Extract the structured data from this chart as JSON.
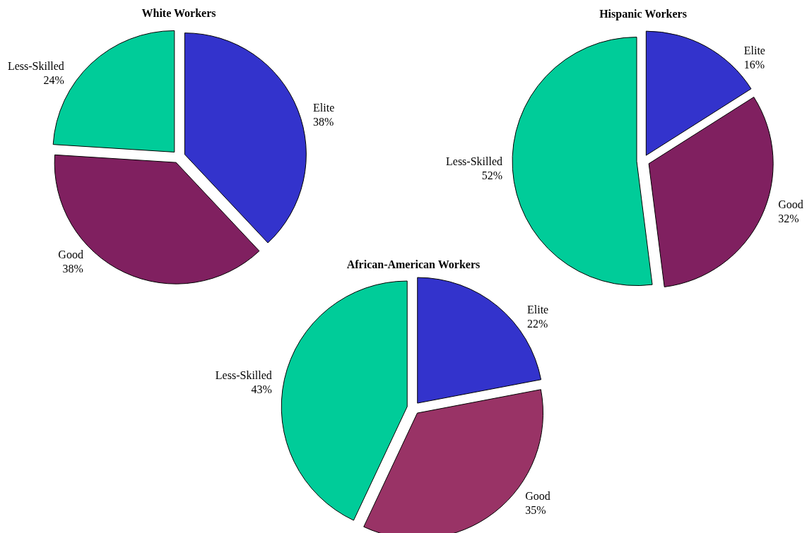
{
  "chart_data": [
    {
      "type": "pie",
      "title": "White Workers",
      "categories": [
        "Elite",
        "Good",
        "Less-Skilled"
      ],
      "values": [
        38,
        38,
        24
      ],
      "colors": [
        "#3333cc",
        "#802060",
        "#00cc99"
      ],
      "value_labels": [
        "38%",
        "38%",
        "24%"
      ]
    },
    {
      "type": "pie",
      "title": "Hispanic Workers",
      "categories": [
        "Elite",
        "Good",
        "Less-Skilled"
      ],
      "values": [
        16,
        32,
        52
      ],
      "colors": [
        "#3333cc",
        "#802060",
        "#00cc99"
      ],
      "value_labels": [
        "16%",
        "32%",
        "52%"
      ]
    },
    {
      "type": "pie",
      "title": "African-American Workers",
      "categories": [
        "Elite",
        "Good",
        "Less-Skilled"
      ],
      "values": [
        22,
        35,
        43
      ],
      "colors": [
        "#3333cc",
        "#993366",
        "#00cc99"
      ],
      "value_labels": [
        "22%",
        "35%",
        "43%"
      ]
    }
  ]
}
